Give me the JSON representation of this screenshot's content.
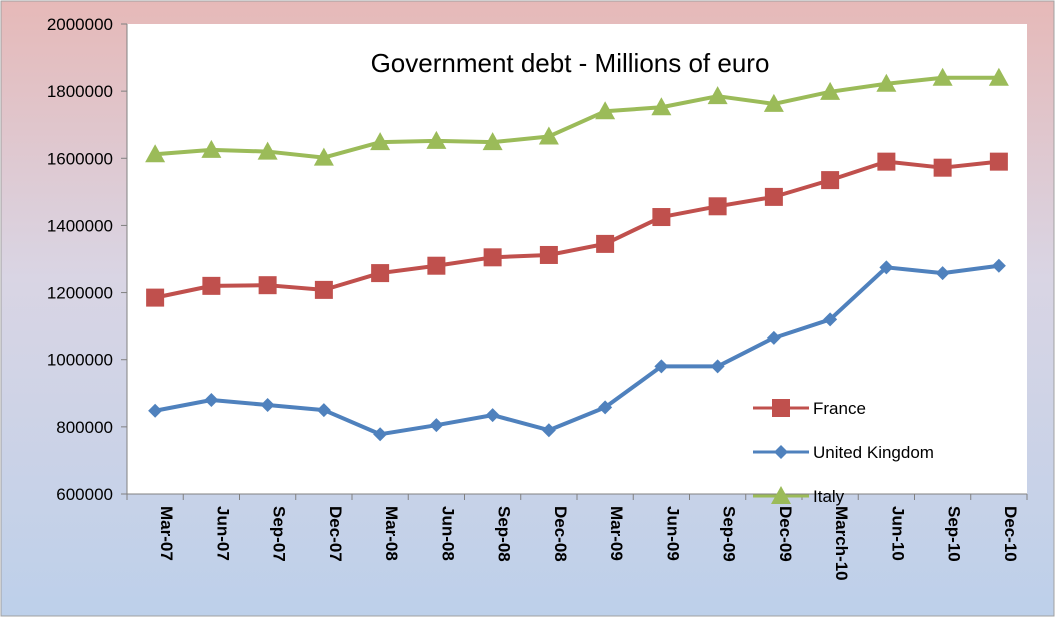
{
  "chart_data": {
    "type": "line",
    "title": "Government debt - Millions of euro",
    "xlabel": "",
    "ylabel": "",
    "categories": [
      "Mar-07",
      "Jun-07",
      "Sep-07",
      "Dec-07",
      "Mar-08",
      "Jun-08",
      "Sep-08",
      "Dec-08",
      "Mar-09",
      "Jun-09",
      "Sep-09",
      "Dec-09",
      "March-10",
      "Jun-10",
      "Sep-10",
      "Dec-10"
    ],
    "ylim": [
      600000,
      2000000
    ],
    "yticks": [
      "600000",
      "800000",
      "1000000",
      "1200000",
      "1400000",
      "1600000",
      "1800000",
      "2000000"
    ],
    "grid": false,
    "legend_position": "bottom-right",
    "series": [
      {
        "name": "France",
        "color": "#c0504d",
        "marker": "square",
        "values": [
          1185000,
          1220000,
          1222000,
          1208000,
          1258000,
          1280000,
          1305000,
          1312000,
          1345000,
          1425000,
          1457000,
          1485000,
          1535000,
          1590000,
          1572000,
          1590000
        ]
      },
      {
        "name": "United Kingdom",
        "color": "#4f81bd",
        "marker": "diamond",
        "values": [
          848000,
          880000,
          865000,
          850000,
          778000,
          805000,
          835000,
          790000,
          858000,
          980000,
          980000,
          1065000,
          1120000,
          1275000,
          1258000,
          1280000
        ]
      },
      {
        "name": "Italy",
        "color": "#9bbb59",
        "marker": "triangle",
        "values": [
          1612000,
          1625000,
          1620000,
          1602000,
          1648000,
          1652000,
          1648000,
          1665000,
          1740000,
          1752000,
          1785000,
          1762000,
          1798000,
          1822000,
          1840000,
          1840000
        ]
      }
    ]
  }
}
